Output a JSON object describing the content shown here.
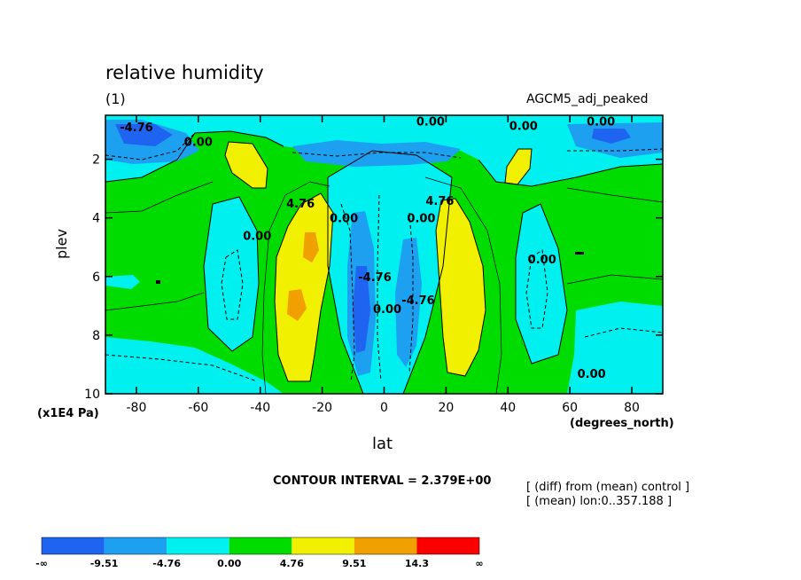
{
  "chart_data": {
    "type": "heatmap",
    "title": "relative humidity",
    "subtitle": "(1)",
    "dataset": "AGCM5_adj_peaked",
    "xlabel": "lat",
    "x_unit": "(degrees_north)",
    "ylabel": "plev",
    "y_unit": "(x1E4 Pa)",
    "xlim": [
      -90,
      90
    ],
    "ylim": [
      0.5,
      10
    ],
    "y_inverted": true,
    "x_ticks": [
      "-80",
      "-60",
      "-40",
      "-20",
      "0",
      "20",
      "40",
      "60",
      "80"
    ],
    "x_tick_values": [
      -80,
      -60,
      -40,
      -20,
      0,
      20,
      40,
      60,
      80
    ],
    "y_ticks": [
      "2",
      "4",
      "6",
      "8",
      "10"
    ],
    "y_tick_values": [
      2,
      4,
      6,
      8,
      10
    ],
    "contour_interval_text": "CONTOUR INTERVAL = 2.379E+00",
    "notes": [
      "[ (diff) from (mean) control ]",
      "[ (mean) lon:0..357.188 ]"
    ],
    "colorbar": {
      "boundary_labels": [
        "-∞",
        "-9.51",
        "-4.76",
        "0.00",
        "4.76",
        "9.51",
        "14.3",
        "∞"
      ],
      "colors": [
        "#1e64f0",
        "#1ea0f0",
        "#00f0f0",
        "#00dc00",
        "#f0f000",
        "#f0a000",
        "#fa0000"
      ]
    },
    "contour_labels": [
      {
        "text": "0.00",
        "lat": 15,
        "p": 0.7
      },
      {
        "text": "0.00",
        "lat": 45,
        "p": 0.85
      },
      {
        "text": "0.00",
        "lat": 70,
        "p": 0.7
      },
      {
        "text": "-4.76",
        "lat": -80,
        "p": 0.9
      },
      {
        "text": "0.00",
        "lat": -60,
        "p": 1.4
      },
      {
        "text": "4.76",
        "lat": -27,
        "p": 3.5
      },
      {
        "text": "0.00",
        "lat": -13,
        "p": 4.0
      },
      {
        "text": "0.00",
        "lat": 12,
        "p": 4.0
      },
      {
        "text": "4.76",
        "lat": 18,
        "p": 3.4
      },
      {
        "text": "0.00",
        "lat": -41,
        "p": 4.6
      },
      {
        "text": "0.00",
        "lat": 51,
        "p": 5.4
      },
      {
        "text": "-4.76",
        "lat": -3,
        "p": 6.0
      },
      {
        "text": "0.00",
        "lat": 1,
        "p": 7.1
      },
      {
        "text": "-4.76",
        "lat": 11,
        "p": 6.8
      },
      {
        "text": "0.00",
        "lat": 67,
        "p": 9.3
      }
    ]
  }
}
